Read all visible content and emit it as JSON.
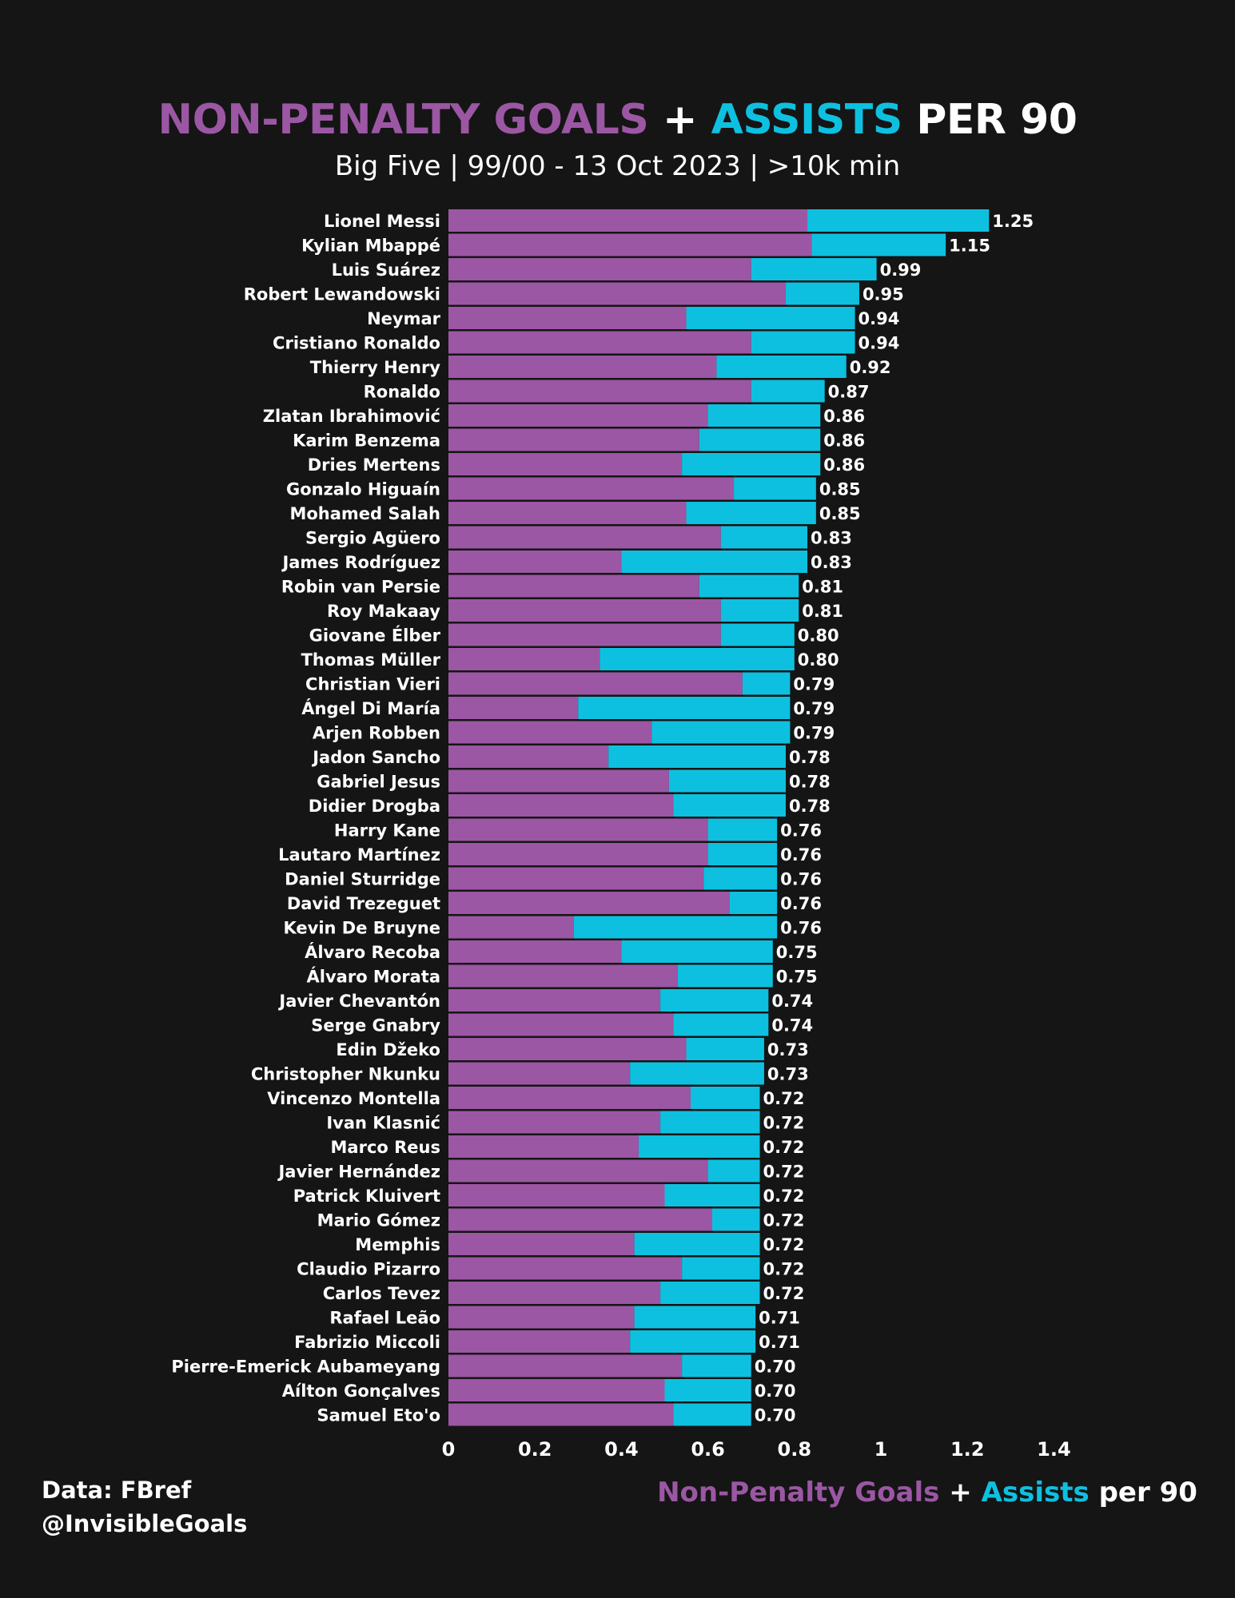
{
  "header": {
    "title_part1": "NON-PENALTY GOALS",
    "title_plus": "+",
    "title_part2": "ASSISTS",
    "title_part3": "PER 90",
    "subtitle": "Big Five | 99/00 - 13 Oct 2023 | >10k min"
  },
  "xcaption": {
    "part1": "Non-Penalty Goals",
    "plus": "+",
    "part2": "Assists",
    "part3": "per 90"
  },
  "credits": {
    "source": "Data: FBref",
    "handle": "@InvisibleGoals"
  },
  "colors": {
    "background": "#151515",
    "goals": "#9b57a3",
    "assists": "#0ec0e0",
    "text": "#ffffff"
  },
  "chart_data": {
    "type": "bar",
    "orientation": "horizontal",
    "stacked": true,
    "xlim": [
      0,
      1.4
    ],
    "xticks": [
      "0",
      "0.2",
      "0.4",
      "0.6",
      "0.8",
      "1",
      "1.2",
      "1.4"
    ],
    "grid": false,
    "categories": [
      "Lionel Messi",
      "Kylian Mbappé",
      "Luis Suárez",
      "Robert Lewandowski",
      "Neymar",
      "Cristiano Ronaldo",
      "Thierry Henry",
      "Ronaldo",
      "Zlatan Ibrahimović",
      "Karim Benzema",
      "Dries Mertens",
      "Gonzalo Higuaín",
      "Mohamed Salah",
      "Sergio Agüero",
      "James Rodríguez",
      "Robin van Persie",
      "Roy Makaay",
      "Giovane Élber",
      "Thomas Müller",
      "Christian Vieri",
      "Ángel Di María",
      "Arjen Robben",
      "Jadon Sancho",
      "Gabriel Jesus",
      "Didier Drogba",
      "Harry Kane",
      "Lautaro Martínez",
      "Daniel Sturridge",
      "David Trezeguet",
      "Kevin De Bruyne",
      "Álvaro Recoba",
      "Álvaro Morata",
      "Javier Chevantón",
      "Serge Gnabry",
      "Edin Džeko",
      "Christopher Nkunku",
      "Vincenzo Montella",
      "Ivan Klasnić",
      "Marco Reus",
      "Javier Hernández",
      "Patrick Kluivert",
      "Mario Gómez",
      "Memphis",
      "Claudio Pizarro",
      "Carlos Tevez",
      "Rafael Leão",
      "Fabrizio Miccoli",
      "Pierre-Emerick Aubameyang",
      "Aílton Gonçalves",
      "Samuel Eto'o"
    ],
    "series": [
      {
        "name": "Non-Penalty Goals",
        "values": [
          0.83,
          0.84,
          0.7,
          0.78,
          0.55,
          0.7,
          0.62,
          0.7,
          0.6,
          0.58,
          0.54,
          0.66,
          0.55,
          0.63,
          0.4,
          0.58,
          0.63,
          0.63,
          0.35,
          0.68,
          0.3,
          0.47,
          0.37,
          0.51,
          0.52,
          0.6,
          0.6,
          0.59,
          0.65,
          0.29,
          0.4,
          0.53,
          0.49,
          0.52,
          0.55,
          0.42,
          0.56,
          0.49,
          0.44,
          0.6,
          0.5,
          0.61,
          0.43,
          0.54,
          0.49,
          0.43,
          0.42,
          0.54,
          0.5,
          0.52
        ]
      },
      {
        "name": "Assists",
        "values": [
          0.42,
          0.31,
          0.29,
          0.17,
          0.39,
          0.24,
          0.3,
          0.17,
          0.26,
          0.28,
          0.32,
          0.19,
          0.3,
          0.2,
          0.43,
          0.23,
          0.18,
          0.17,
          0.45,
          0.11,
          0.49,
          0.32,
          0.41,
          0.27,
          0.26,
          0.16,
          0.16,
          0.17,
          0.11,
          0.47,
          0.35,
          0.22,
          0.25,
          0.22,
          0.18,
          0.31,
          0.16,
          0.23,
          0.28,
          0.12,
          0.22,
          0.11,
          0.29,
          0.18,
          0.23,
          0.28,
          0.29,
          0.16,
          0.2,
          0.18
        ]
      }
    ],
    "totals": [
      "1.25",
      "1.15",
      "0.99",
      "0.95",
      "0.94",
      "0.94",
      "0.92",
      "0.87",
      "0.86",
      "0.86",
      "0.86",
      "0.85",
      "0.85",
      "0.83",
      "0.83",
      "0.81",
      "0.81",
      "0.80",
      "0.80",
      "0.79",
      "0.79",
      "0.79",
      "0.78",
      "0.78",
      "0.78",
      "0.76",
      "0.76",
      "0.76",
      "0.76",
      "0.76",
      "0.75",
      "0.75",
      "0.74",
      "0.74",
      "0.73",
      "0.73",
      "0.72",
      "0.72",
      "0.72",
      "0.72",
      "0.72",
      "0.72",
      "0.72",
      "0.72",
      "0.72",
      "0.71",
      "0.71",
      "0.70",
      "0.70",
      "0.70"
    ]
  }
}
